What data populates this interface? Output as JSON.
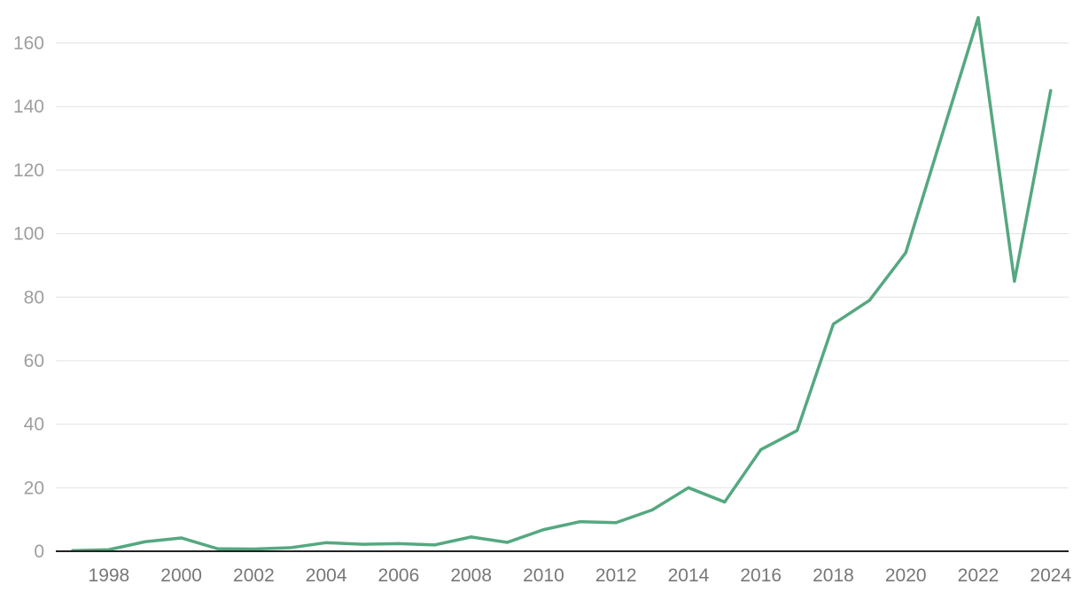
{
  "chart_data": {
    "type": "line",
    "title": "",
    "xlabel": "",
    "ylabel": "",
    "xlim": [
      1997,
      2024
    ],
    "ylim": [
      0,
      170
    ],
    "y_ticks": [
      0,
      20,
      40,
      60,
      80,
      100,
      120,
      140,
      160
    ],
    "x_ticks": [
      1998,
      2000,
      2002,
      2004,
      2006,
      2008,
      2010,
      2012,
      2014,
      2016,
      2018,
      2020,
      2022,
      2024
    ],
    "y_tick_labels": [
      "0",
      "20",
      "40",
      "60",
      "80",
      "100",
      "120",
      "140",
      "160"
    ],
    "x_tick_labels": [
      "1998",
      "2000",
      "2002",
      "2004",
      "2006",
      "2008",
      "2010",
      "2012",
      "2014",
      "2016",
      "2018",
      "2020",
      "2022",
      "2024"
    ],
    "grid": "horizontal",
    "legend": "none",
    "series": [
      {
        "color": "#55a880",
        "x": [
          1997,
          1998,
          1999,
          2000,
          2001,
          2002,
          2003,
          2004,
          2005,
          2006,
          2007,
          2008,
          2009,
          2010,
          2011,
          2012,
          2013,
          2014,
          2015,
          2016,
          2017,
          2018,
          2019,
          2020,
          2021,
          2022,
          2023,
          2024
        ],
        "values": [
          0.2,
          0.5,
          3,
          4.2,
          0.8,
          0.7,
          1.1,
          2.7,
          2.2,
          2.4,
          2,
          4.5,
          2.8,
          6.8,
          9.3,
          9,
          13,
          20,
          15.5,
          32,
          38,
          71.5,
          79,
          94,
          131,
          168,
          85,
          145
        ]
      }
    ]
  },
  "colors": {
    "line": "#55a880",
    "grid": "#e2e2e2",
    "axis": "#222222",
    "tick_text": "#9e9e9e"
  }
}
